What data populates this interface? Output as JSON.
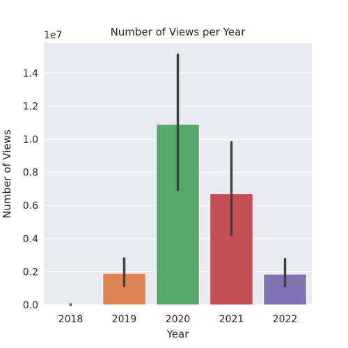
{
  "chart_data": {
    "type": "bar",
    "title": "Number of Views per Year",
    "xlabel": "Year",
    "ylabel": "Number of Views",
    "y_offset_label": "1e7",
    "categories": [
      "2018",
      "2019",
      "2020",
      "2021",
      "2022"
    ],
    "values": [
      10000,
      1900000,
      10900000,
      6700000,
      1850000
    ],
    "error_low": [
      5000,
      1150000,
      6950000,
      4200000,
      1150000
    ],
    "error_high": [
      15000,
      2800000,
      15100000,
      9800000,
      2750000
    ],
    "ylim": [
      0,
      15800000
    ],
    "y_ticks": [
      0,
      2000000,
      4000000,
      6000000,
      8000000,
      10000000,
      12000000,
      14000000
    ],
    "y_tick_labels": [
      "0.0",
      "0.2",
      "0.4",
      "0.6",
      "0.8",
      "1.0",
      "1.2",
      "1.4"
    ],
    "grid": true,
    "colors": [
      "#4c72b0",
      "#dd8452",
      "#55a868",
      "#c44e52",
      "#8172b3"
    ],
    "background": "#eaeaf2",
    "error_color": "#424242"
  }
}
